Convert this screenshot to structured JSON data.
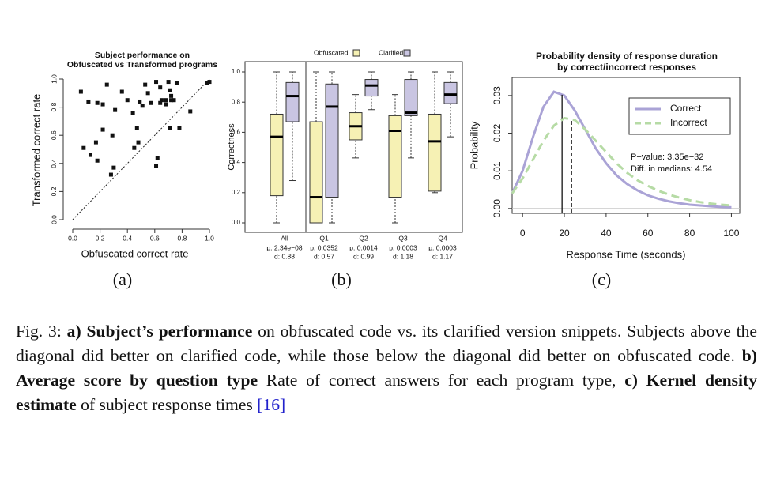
{
  "chart_data": [
    {
      "type": "scatter",
      "title": [
        "Subject performance on",
        "Obfuscated vs Transformed programs"
      ],
      "xlabel": "Obfuscated correct rate",
      "ylabel": "Transformed correct rate",
      "x": [
        0.06,
        0.115,
        0.18,
        0.22,
        0.25,
        0.31,
        0.36,
        0.4,
        0.44,
        0.49,
        0.53,
        0.55,
        0.57,
        0.61,
        0.64,
        0.65,
        0.68,
        0.7,
        0.72,
        0.74,
        0.76,
        0.64,
        0.68,
        0.71,
        0.72,
        0.78,
        0.86,
        0.98,
        1.0,
        0.71,
        0.22,
        0.29,
        0.17,
        0.13,
        0.08,
        0.18,
        0.28,
        0.3,
        0.48,
        0.45,
        0.62,
        0.61,
        0.51,
        0.47
      ],
      "y": [
        0.91,
        0.84,
        0.83,
        0.82,
        0.96,
        0.78,
        0.91,
        0.85,
        0.76,
        0.84,
        0.96,
        0.9,
        0.83,
        0.98,
        0.94,
        0.85,
        0.85,
        0.98,
        0.85,
        0.85,
        0.97,
        0.83,
        0.82,
        0.92,
        0.88,
        0.65,
        0.77,
        0.97,
        0.98,
        0.65,
        0.64,
        0.6,
        0.55,
        0.46,
        0.51,
        0.42,
        0.32,
        0.37,
        0.55,
        0.51,
        0.44,
        0.38,
        0.81,
        0.65
      ],
      "color": "#111111",
      "xlim": [
        0,
        1
      ],
      "ylim": [
        0,
        1
      ],
      "xticks": [
        {
          "value": 0,
          "label": "0.0"
        },
        {
          "value": 0.2,
          "label": "0.2"
        },
        {
          "value": 0.4,
          "label": "0.4"
        },
        {
          "value": 0.6,
          "label": "0.6"
        },
        {
          "value": 0.8,
          "label": "0.8"
        },
        {
          "value": 1,
          "label": "1.0"
        }
      ],
      "yticks": [
        {
          "value": 0,
          "label": "0.0"
        },
        {
          "value": 0.2,
          "label": "0.2"
        },
        {
          "value": 0.4,
          "label": "0.4"
        },
        {
          "value": 0.6,
          "label": "0.6"
        },
        {
          "value": 0.8,
          "label": "0.8"
        },
        {
          "value": 1,
          "label": "1.0"
        }
      ],
      "reference_line": "diagonal"
    },
    {
      "type": "box",
      "ylabel": "Correctness",
      "categories": [
        "All",
        "Q1",
        "Q2",
        "Q3",
        "Q4"
      ],
      "category_notes": [
        [
          "p: 2.34e−08",
          "d: 0.88"
        ],
        [
          "p: 0.0352",
          "d: 0.57"
        ],
        [
          "p: 0.0014",
          "d: 0.99"
        ],
        [
          "p: 0.0003",
          "d: 1.18"
        ],
        [
          "p: 0.0003",
          "d: 1.17"
        ]
      ],
      "series": [
        {
          "name": "Obfuscated",
          "color": "#f6f1b4",
          "values": [
            [
              0,
              0.18,
              0.57,
              0.72,
              1.0
            ],
            [
              0,
              0,
              0.17,
              0.67,
              1.0
            ],
            [
              0.43,
              0.55,
              0.64,
              0.73,
              0.85
            ],
            [
              0,
              0.17,
              0.61,
              0.71,
              0.85
            ],
            [
              0.2,
              0.21,
              0.54,
              0.72,
              1.0
            ]
          ]
        },
        {
          "name": "Clarified",
          "color": "#c9c5e2",
          "values": [
            [
              0.28,
              0.67,
              0.84,
              0.93,
              1.0
            ],
            [
              0,
              0.17,
              0.77,
              0.92,
              1.0
            ],
            [
              0.75,
              0.84,
              0.91,
              0.95,
              1.0
            ],
            [
              0.43,
              0.71,
              0.73,
              0.95,
              1.0
            ],
            [
              0.57,
              0.79,
              0.85,
              0.93,
              1.0
            ]
          ]
        }
      ],
      "ylim": [
        0,
        1
      ],
      "yticks": [
        {
          "value": 0,
          "label": "0.0"
        },
        {
          "value": 0.2,
          "label": "0.2"
        },
        {
          "value": 0.4,
          "label": "0.4"
        },
        {
          "value": 0.6,
          "label": "0.6"
        },
        {
          "value": 0.8,
          "label": "0.8"
        },
        {
          "value": 1,
          "label": "1.0"
        }
      ],
      "legend": "top"
    },
    {
      "type": "line",
      "title": [
        "Probability density of response duration",
        "by correct/incorrect responses"
      ],
      "xlabel": "Response Time (seconds)",
      "ylabel": "Probability",
      "x": [
        -5,
        0,
        5,
        10,
        15,
        20,
        25,
        30,
        35,
        40,
        45,
        50,
        55,
        60,
        65,
        70,
        75,
        80,
        85,
        90,
        95,
        100
      ],
      "series": [
        {
          "name": "Correct",
          "color": "#aaa3d6",
          "dashed": false,
          "median": 18.9,
          "values": [
            0.004,
            0.01,
            0.019,
            0.027,
            0.031,
            0.03,
            0.026,
            0.021,
            0.016,
            0.012,
            0.0088,
            0.0065,
            0.0048,
            0.0035,
            0.0026,
            0.0019,
            0.0014,
            0.001,
            0.0008,
            0.0006,
            0.0004,
            0.0003
          ]
        },
        {
          "name": "Incorrect",
          "color": "#b6dba5",
          "dashed": true,
          "median": 23.44,
          "values": [
            0.004,
            0.008,
            0.013,
            0.018,
            0.022,
            0.024,
            0.0235,
            0.021,
            0.018,
            0.015,
            0.012,
            0.0095,
            0.0075,
            0.006,
            0.0047,
            0.0037,
            0.0029,
            0.0022,
            0.0017,
            0.0013,
            0.001,
            0.0008
          ]
        }
      ],
      "xlim": [
        -5,
        104
      ],
      "ylim": [
        -0.0013,
        0.0348
      ],
      "xticks": [
        0,
        20,
        40,
        60,
        80,
        100
      ],
      "yticks": [
        {
          "value": 0,
          "label": "0.00"
        },
        {
          "value": 0.01,
          "label": "0.01"
        },
        {
          "value": 0.02,
          "label": "0.02"
        },
        {
          "value": 0.03,
          "label": "0.03"
        }
      ],
      "zero_line": true,
      "legend": "top-right",
      "annotations": [
        "P−value: 3.35e−32",
        "Diff. in medians: 4.54"
      ]
    }
  ],
  "panel_labels": [
    "(a)",
    "(b)",
    "(c)"
  ],
  "caption": {
    "parts": [
      {
        "text": "Fig. 3: ",
        "style": "normal"
      },
      {
        "text": "a) Subject’s performance",
        "style": "bold"
      },
      {
        "text": " on obfuscated code vs. its clarified version snippets. Subjects above the diagonal did better on clarified code, while those below the diagonal did better on obfuscated code. ",
        "style": "normal"
      },
      {
        "text": "b) Average score by question type",
        "style": "bold"
      },
      {
        "text": " Rate of correct answers for each program type, ",
        "style": "normal"
      },
      {
        "text": "c) Kernel density estimate",
        "style": "bold"
      },
      {
        "text": " of subject response times ",
        "style": "normal"
      },
      {
        "text": "[16]",
        "style": "link"
      }
    ]
  }
}
